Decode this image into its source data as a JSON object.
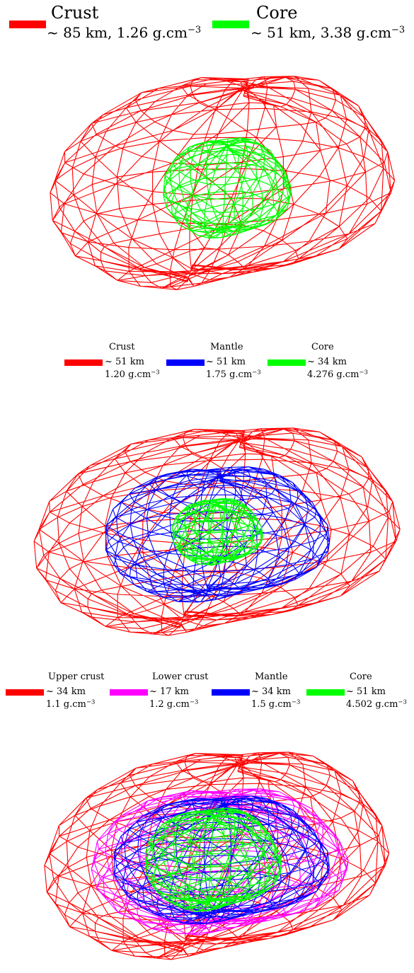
{
  "colors": {
    "crust": "#ff0000",
    "upper_crust": "#ff0000",
    "lower_crust": "#ff00ff",
    "mantle": "#0000ff",
    "core": "#00ff00"
  },
  "panels": [
    {
      "legend": [
        {
          "name": "Crust",
          "thickness": "~ 85 km, 1.26 g.cm",
          "exp": "−3",
          "color": "#ff0000"
        },
        {
          "name": "Core",
          "thickness": "~ 51 km, 3.38 g.cm",
          "exp": "−3",
          "color": "#00ff00"
        }
      ]
    },
    {
      "legend": [
        {
          "name": "Crust",
          "thickness": "~ 51 km",
          "density": "1.20 g.cm",
          "exp": "−3",
          "color": "#ff0000"
        },
        {
          "name": "Mantle",
          "thickness": "~ 51 km",
          "density": "1.75 g.cm",
          "exp": "−3",
          "color": "#0000ff"
        },
        {
          "name": "Core",
          "thickness": "~ 34 km",
          "density": "4.276 g.cm",
          "exp": "−3",
          "color": "#00ff00"
        }
      ]
    },
    {
      "legend": [
        {
          "name": "Upper crust",
          "thickness": "~ 34 km",
          "density": "1.1 g.cm",
          "exp": "−3",
          "color": "#ff0000"
        },
        {
          "name": "Lower crust",
          "thickness": "~ 17 km",
          "density": "1.2 g.cm",
          "exp": "−3",
          "color": "#ff00ff"
        },
        {
          "name": "Mantle",
          "thickness": "~ 34 km",
          "density": "1.5 g.cm",
          "exp": "−3",
          "color": "#0000ff"
        },
        {
          "name": "Core",
          "thickness": "~ 51 km",
          "density": "4.502 g.cm",
          "exp": "−3",
          "color": "#00ff00"
        }
      ]
    }
  ]
}
